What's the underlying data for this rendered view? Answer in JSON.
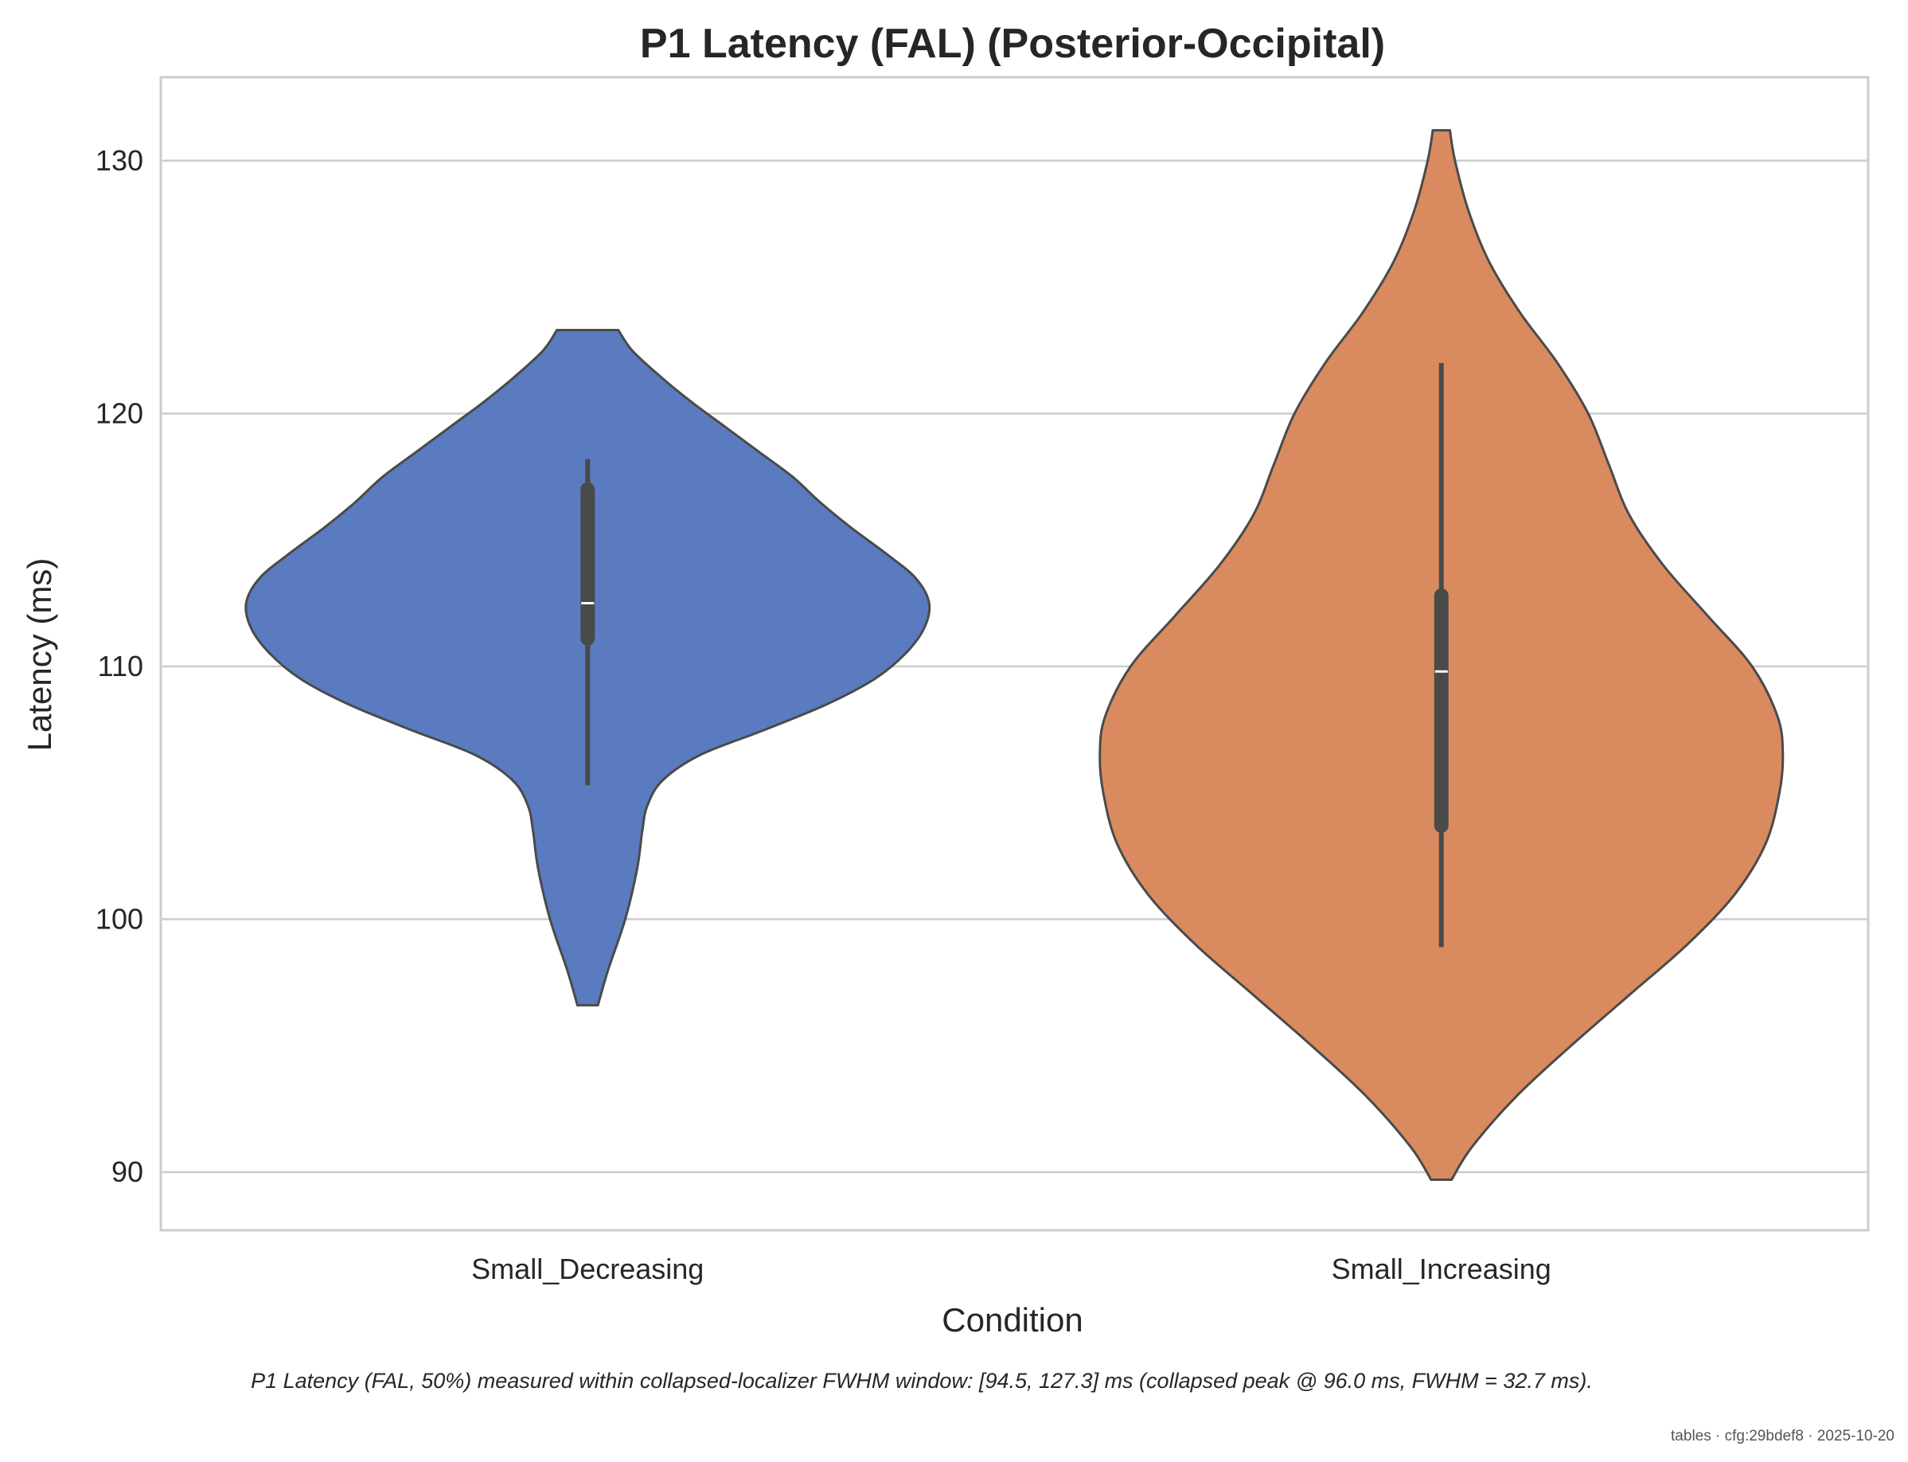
{
  "chart_data": {
    "type": "violin",
    "title": "P1 Latency (FAL) (Posterior-Occipital)",
    "xlabel": "Condition",
    "ylabel": "Latency (ms)",
    "ylim": [
      87.7,
      133.3
    ],
    "yticks": [
      90,
      100,
      110,
      120,
      130
    ],
    "grid": "horizontal",
    "categories": [
      "Small_Decreasing",
      "Small_Increasing"
    ],
    "series": [
      {
        "category": "Small_Decreasing",
        "color": "#5a7bbf",
        "range": [
          96.6,
          123.3
        ],
        "median": 112.5,
        "q1": 111.1,
        "q3": 117.0,
        "whisker_low": 105.3,
        "whisker_high": 118.2,
        "density_profile": [
          [
            96.6,
            0.03
          ],
          [
            98.0,
            0.06
          ],
          [
            100.0,
            0.11
          ],
          [
            102.0,
            0.145
          ],
          [
            103.5,
            0.16
          ],
          [
            104.5,
            0.175
          ],
          [
            105.5,
            0.22
          ],
          [
            106.5,
            0.33
          ],
          [
            107.5,
            0.52
          ],
          [
            108.5,
            0.7
          ],
          [
            109.5,
            0.84
          ],
          [
            110.5,
            0.93
          ],
          [
            111.5,
            0.985
          ],
          [
            112.5,
            1.0
          ],
          [
            113.5,
            0.96
          ],
          [
            114.5,
            0.87
          ],
          [
            115.5,
            0.77
          ],
          [
            116.5,
            0.68
          ],
          [
            117.5,
            0.6
          ],
          [
            118.5,
            0.5
          ],
          [
            119.5,
            0.4
          ],
          [
            120.5,
            0.3
          ],
          [
            121.5,
            0.21
          ],
          [
            122.5,
            0.13
          ],
          [
            123.3,
            0.09
          ]
        ]
      },
      {
        "category": "Small_Increasing",
        "color": "#d98b5f",
        "range": [
          89.7,
          131.2
        ],
        "median": 109.8,
        "q1": 103.7,
        "q3": 112.8,
        "whisker_low": 98.9,
        "whisker_high": 122.0,
        "density_profile": [
          [
            89.7,
            0.03
          ],
          [
            91.0,
            0.09
          ],
          [
            93.0,
            0.22
          ],
          [
            95.0,
            0.38
          ],
          [
            97.0,
            0.55
          ],
          [
            99.0,
            0.72
          ],
          [
            101.0,
            0.86
          ],
          [
            103.0,
            0.95
          ],
          [
            105.0,
            0.99
          ],
          [
            106.5,
            1.0
          ],
          [
            108.0,
            0.985
          ],
          [
            110.0,
            0.91
          ],
          [
            112.0,
            0.78
          ],
          [
            114.0,
            0.65
          ],
          [
            116.0,
            0.55
          ],
          [
            118.0,
            0.49
          ],
          [
            120.0,
            0.43
          ],
          [
            122.0,
            0.34
          ],
          [
            124.0,
            0.23
          ],
          [
            126.0,
            0.14
          ],
          [
            128.0,
            0.08
          ],
          [
            130.0,
            0.04
          ],
          [
            131.2,
            0.025
          ]
        ]
      }
    ]
  },
  "caption": "P1 Latency (FAL, 50%) measured within collapsed-localizer FWHM window: [94.5, 127.3] ms (collapsed peak @ 96.0 ms, FWHM = 32.7 ms).",
  "footer": "tables · cfg:29bdef8 · 2025-10-20"
}
